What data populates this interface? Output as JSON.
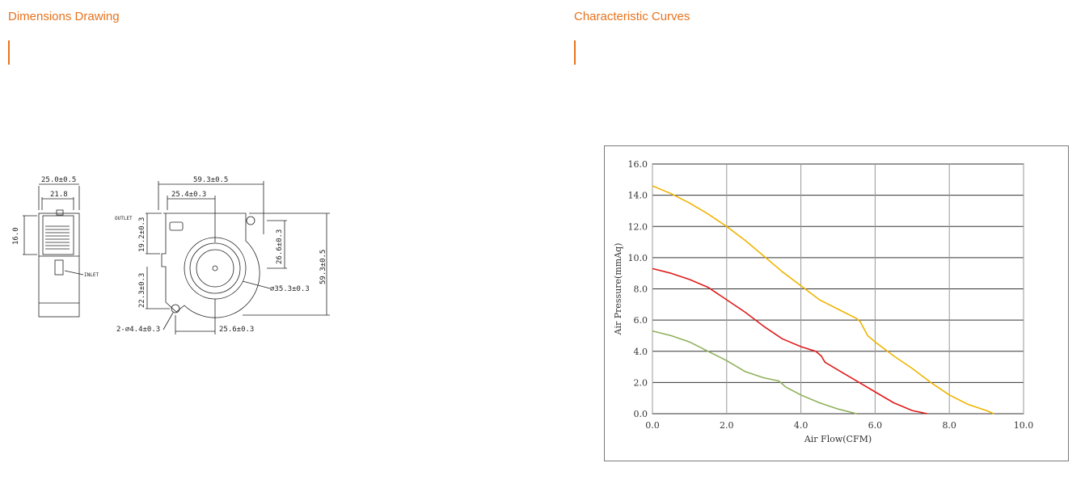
{
  "left_section": {
    "title": "Dimensions Drawing"
  },
  "right_section": {
    "title": "Characteristic Curves"
  },
  "drawing": {
    "labels": {
      "side_width": "25.0±0.5",
      "side_inner": "21.8",
      "side_height": "16.0",
      "inlet": "INLET",
      "outlet": "OUTLET",
      "front_width": "59.3±0.5",
      "front_offset": "25.4±0.3",
      "outlet_height": "19.2±0.3",
      "hole_vertical": "26.6±0.3",
      "front_height": "59.3±0.5",
      "lower_height": "22.3±0.3",
      "diameter": "⌀35.3±0.3",
      "holes": "2-⌀4.4±0.3",
      "bottom_offset": "25.6±0.3"
    }
  },
  "chart_data": {
    "type": "line",
    "title": "",
    "xlabel": "Air Flow(CFM)",
    "ylabel": "Air Pressure(mmAq)",
    "xlim": [
      0,
      10
    ],
    "ylim": [
      0,
      16
    ],
    "x_ticks": [
      "0.0",
      "2.0",
      "4.0",
      "6.0",
      "8.0",
      "10.0"
    ],
    "y_ticks": [
      "0.0",
      "2.0",
      "4.0",
      "6.0",
      "8.0",
      "10.0",
      "12.0",
      "14.0",
      "16.0"
    ],
    "grid": true,
    "series": [
      {
        "color": "#f0b400",
        "x": [
          0.0,
          0.5,
          1.0,
          1.5,
          2.0,
          2.5,
          3.0,
          3.5,
          4.0,
          4.5,
          5.0,
          5.5,
          5.6,
          5.8,
          6.0,
          6.5,
          7.0,
          7.5,
          8.0,
          8.5,
          9.0,
          9.2
        ],
        "y": [
          14.6,
          14.1,
          13.5,
          12.8,
          12.0,
          11.1,
          10.1,
          9.1,
          8.2,
          7.3,
          6.7,
          6.1,
          5.9,
          5.0,
          4.6,
          3.7,
          2.9,
          2.0,
          1.2,
          0.6,
          0.2,
          0.0
        ]
      },
      {
        "color": "#e01b1b",
        "x": [
          0.0,
          0.5,
          1.0,
          1.5,
          2.0,
          2.5,
          3.0,
          3.5,
          4.0,
          4.4,
          4.55,
          4.65,
          5.0,
          5.5,
          6.0,
          6.5,
          7.0,
          7.4
        ],
        "y": [
          9.3,
          9.0,
          8.6,
          8.1,
          7.3,
          6.5,
          5.6,
          4.8,
          4.3,
          4.0,
          3.7,
          3.3,
          2.8,
          2.1,
          1.4,
          0.7,
          0.2,
          0.0
        ]
      },
      {
        "color": "#8fb15a",
        "x": [
          0.0,
          0.5,
          1.0,
          1.5,
          2.0,
          2.5,
          3.0,
          3.4,
          3.6,
          4.0,
          4.5,
          5.0,
          5.5
        ],
        "y": [
          5.3,
          5.0,
          4.6,
          4.0,
          3.4,
          2.7,
          2.3,
          2.1,
          1.7,
          1.2,
          0.7,
          0.3,
          0.0
        ]
      }
    ]
  }
}
